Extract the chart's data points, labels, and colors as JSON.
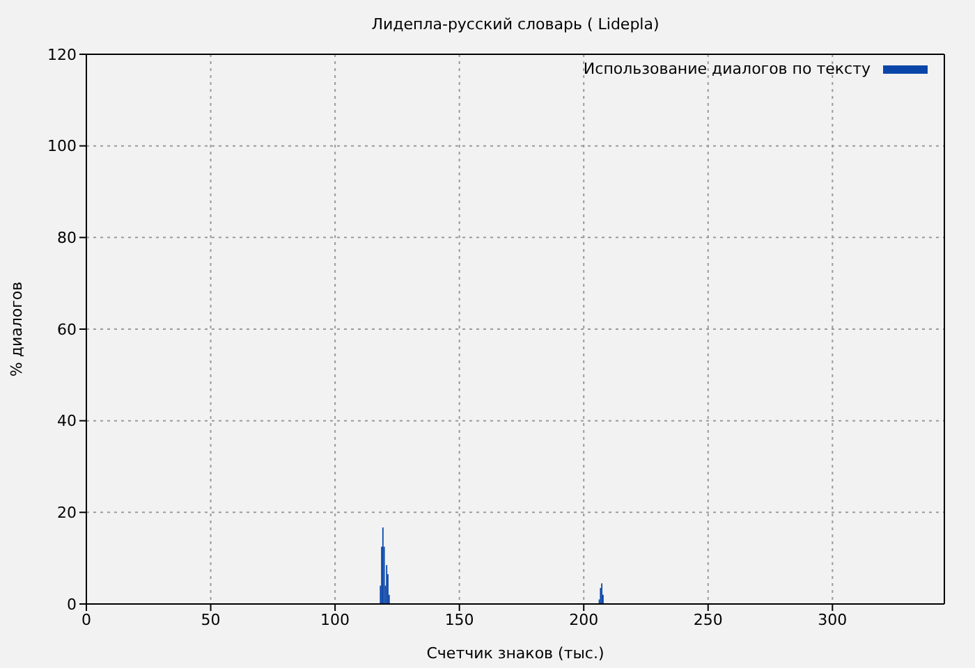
{
  "chart_data": {
    "type": "histogram",
    "title": "Лидепла-русский словарь ( Lidepla)",
    "xlabel": "Счетчик знаков (тыс.)",
    "ylabel": "% диалогов",
    "bins": [
      118,
      118.5,
      119,
      119.5,
      120,
      120.5,
      121,
      121.5,
      122,
      206,
      206.5,
      207,
      207.5,
      208
    ],
    "series": [
      {
        "name": "Использование диалогов по тексту",
        "color": "#0a46a8",
        "values": [
          4,
          12.5,
          16.7,
          12.5,
          4,
          8.5,
          6.5,
          2,
          0,
          1,
          3.5,
          4.5,
          2
        ]
      }
    ],
    "xlim": [
      0,
      345
    ],
    "ylim": [
      0,
      120
    ],
    "xticks": [
      0,
      50,
      100,
      150,
      200,
      250,
      300
    ],
    "yticks": [
      0,
      20,
      40,
      60,
      80,
      100,
      120
    ],
    "grid": true,
    "legend": "top right"
  }
}
